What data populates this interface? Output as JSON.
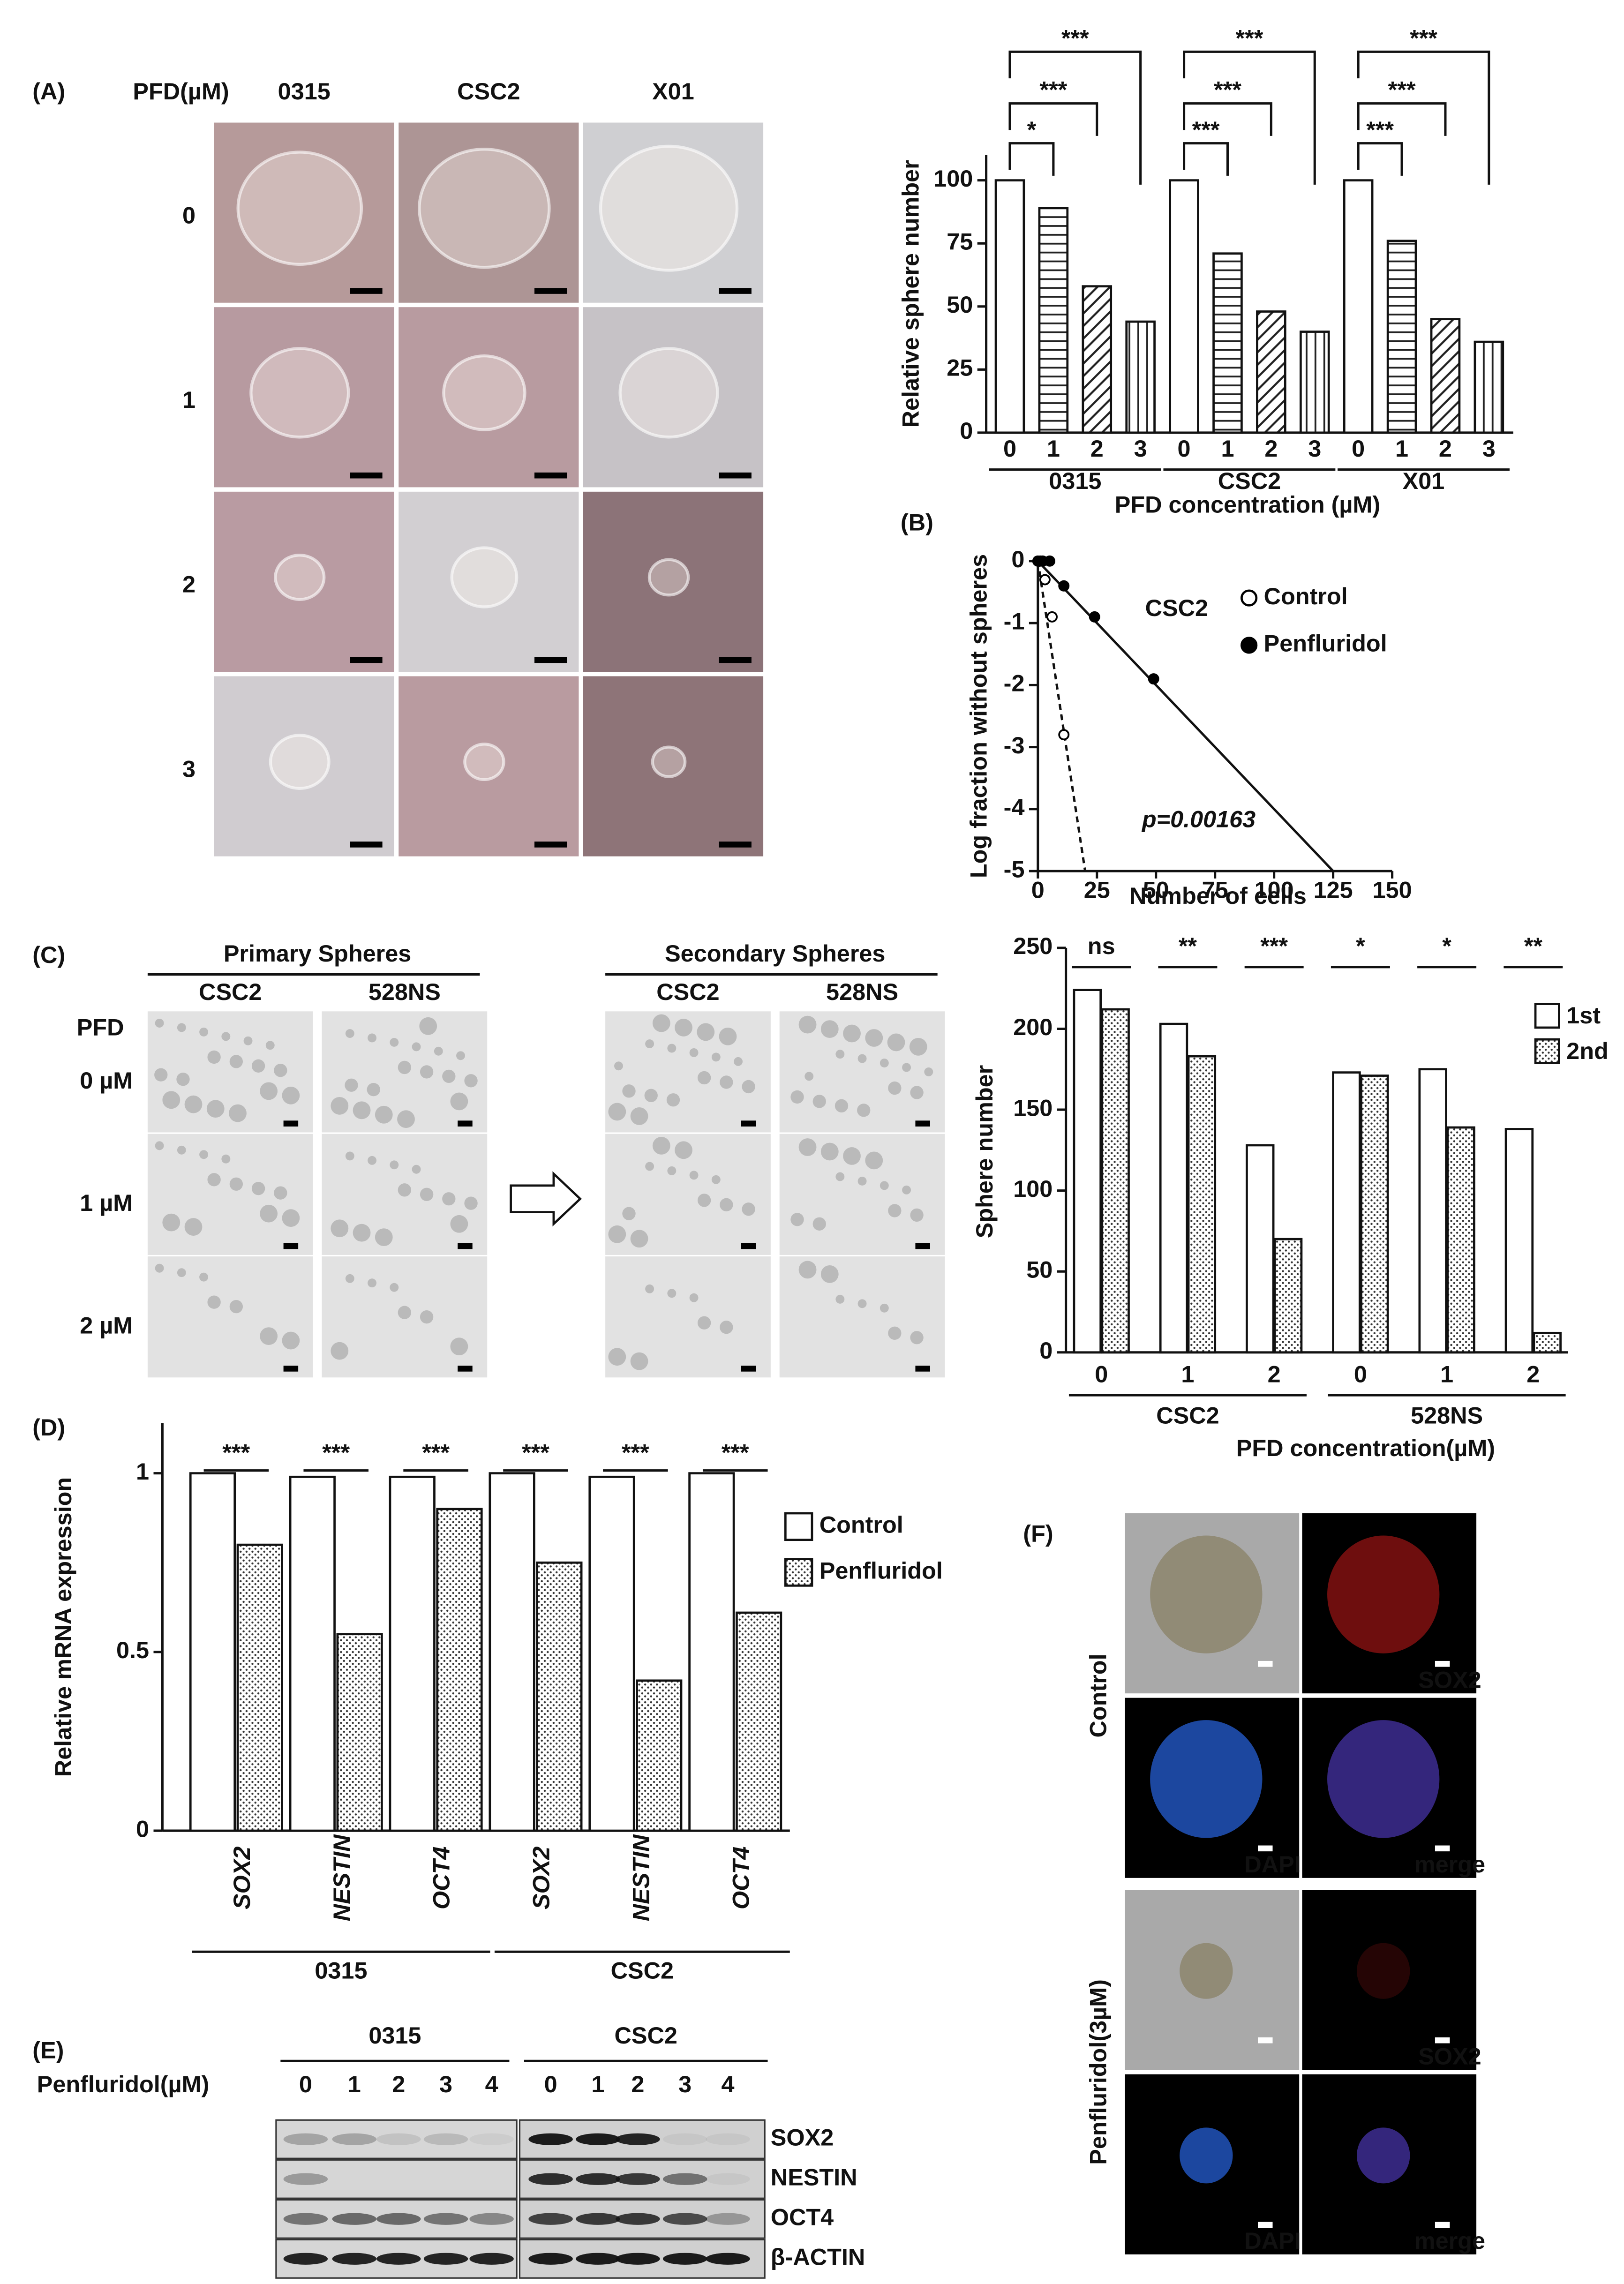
{
  "panel_labels": [
    "(A)",
    "(B)",
    "(C)",
    "(D)",
    "(E)",
    "(F)"
  ],
  "panel_a_images": {
    "header": "PFD(µM)",
    "columns": [
      "0315",
      "CSC2",
      "X01"
    ],
    "rows": [
      "0",
      "1",
      "2",
      "3"
    ]
  },
  "panel_c_images": {
    "groups": [
      "Primary Spheres",
      "Secondary Spheres"
    ],
    "columns": [
      "CSC2",
      "528NS",
      "CSC2",
      "528NS"
    ],
    "row_header": "PFD",
    "rows": [
      "0 µM",
      "1 µM",
      "2 µM"
    ]
  },
  "panel_e_blot": {
    "groups": [
      "0315",
      "CSC2"
    ],
    "row_header": "Penfluridol(µM)",
    "lanes": [
      "0",
      "1",
      "2",
      "3",
      "4",
      "0",
      "1",
      "2",
      "3",
      "4"
    ],
    "proteins": [
      "SOX2",
      "NESTIN",
      "OCT4",
      "β-ACTIN"
    ]
  },
  "panel_f_images": {
    "rows": [
      "Control",
      "Penfluridol(3µM)"
    ],
    "channels": [
      "SOX2",
      "DAPI",
      "merge"
    ]
  },
  "chart_data": [
    {
      "type": "bar",
      "y_label": "Relative sphere number",
      "x_label": "PFD concentration (µM)",
      "categories": [
        "0",
        "1",
        "2",
        "3",
        "0",
        "1",
        "2",
        "3",
        "0",
        "1",
        "2",
        "3"
      ],
      "groups": [
        "0315",
        "CSC2",
        "X01"
      ],
      "values": [
        100,
        89,
        58,
        44,
        100,
        71,
        48,
        40,
        100,
        76,
        45,
        36
      ],
      "color": "#ffffff",
      "ylim": [
        0,
        110
      ],
      "yticks": [
        0,
        25,
        50,
        75,
        100
      ],
      "annotations": [
        "*",
        "***",
        "***",
        "***",
        "***",
        "***",
        "***",
        "***",
        "***"
      ]
    },
    {
      "type": "scatter",
      "title": "CSC2",
      "y_label": "Log fraction without spheres",
      "x_label": "Number of cells",
      "annotation": "p=0.00163",
      "series": [
        {
          "name": "Control",
          "color": "#000000",
          "marker": "open",
          "x": [
            1,
            3,
            6,
            11
          ],
          "values": [
            0,
            -0.3,
            -0.9,
            -2.8
          ],
          "fit_x": [
            0,
            20
          ],
          "fit_values": [
            0,
            -5
          ]
        },
        {
          "name": "Penfluridol",
          "color": "#000000",
          "marker": "filled",
          "x": [
            0,
            2,
            5,
            11,
            24,
            49
          ],
          "values": [
            0,
            0,
            0,
            -0.4,
            -0.9,
            -1.9
          ],
          "fit_x": [
            0,
            125
          ],
          "fit_values": [
            0,
            -5
          ]
        }
      ],
      "xlim": [
        0,
        150
      ],
      "xticks": [
        0,
        25,
        50,
        75,
        100,
        125,
        150
      ],
      "ylim": [
        -5,
        0
      ],
      "yticks": [
        0,
        -1,
        -2,
        -3,
        -4,
        -5
      ]
    },
    {
      "type": "bar",
      "y_label": "Sphere number",
      "x_label": "PFD concentration(µM)",
      "categories": [
        "0",
        "1",
        "2",
        "0",
        "1",
        "2"
      ],
      "groups": [
        "CSC2",
        "528NS"
      ],
      "series": [
        {
          "name": "1st",
          "color": "#ffffff",
          "values": [
            224,
            203,
            128,
            173,
            175,
            138
          ]
        },
        {
          "name": "2nd",
          "color": "#ffffff",
          "values": [
            212,
            183,
            70,
            171,
            139,
            12
          ]
        }
      ],
      "ylim": [
        0,
        250
      ],
      "yticks": [
        0,
        50,
        100,
        150,
        200,
        250
      ],
      "annotations": [
        "ns",
        "**",
        "***",
        "*",
        "*",
        "**"
      ]
    },
    {
      "type": "bar",
      "y_label": "Relative mRNA expression",
      "categories": [
        "SOX2",
        "NESTIN",
        "OCT4",
        "SOX2",
        "NESTIN",
        "OCT4"
      ],
      "groups": [
        "0315",
        "CSC2"
      ],
      "series": [
        {
          "name": "Control",
          "color": "#ffffff",
          "values": [
            1,
            0.99,
            0.99,
            1,
            0.99,
            1
          ]
        },
        {
          "name": "Penfluridol",
          "color": "#ffffff",
          "values": [
            0.8,
            0.55,
            0.9,
            0.75,
            0.42,
            0.61
          ]
        }
      ],
      "ylim": [
        0,
        1.14
      ],
      "yticks": [
        0,
        0.5,
        1
      ],
      "annotations": [
        "***",
        "***",
        "***",
        "***",
        "***",
        "***"
      ]
    }
  ]
}
